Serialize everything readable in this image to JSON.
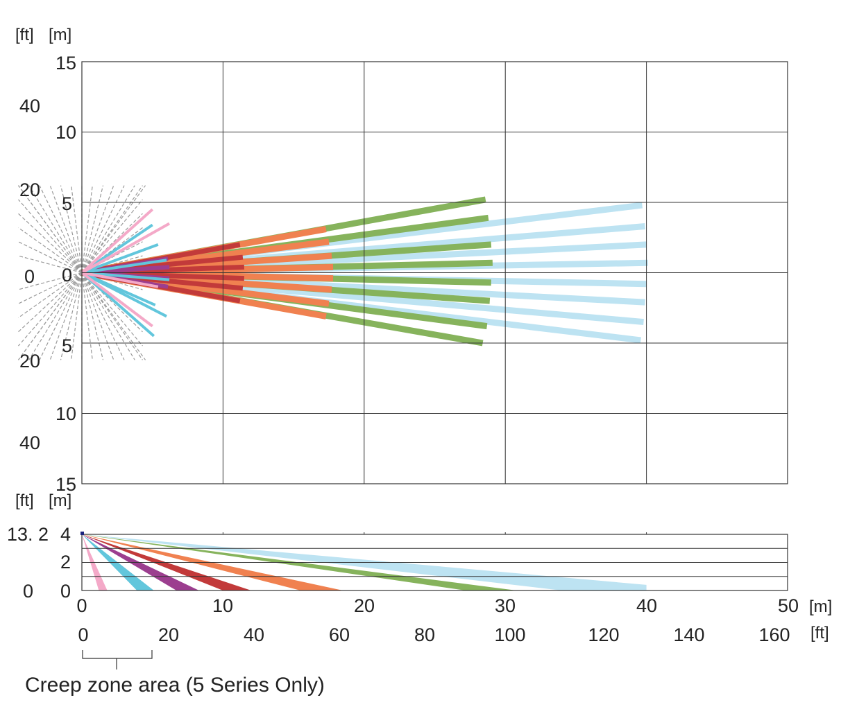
{
  "top_view": {
    "unit_ft": "[ft]",
    "unit_m": "[m]",
    "y_m_labels": [
      "15",
      "10",
      "5",
      "0",
      "5",
      "10",
      "15"
    ],
    "y_ft_labels": [
      "40",
      "20",
      "0",
      "20",
      "40"
    ]
  },
  "side_view": {
    "unit_ft": "[ft]",
    "unit_m": "[m]",
    "y_m_labels": [
      "4",
      "2",
      "0"
    ],
    "y_ft_labels": [
      "13. 2",
      "0"
    ]
  },
  "x_axis": {
    "m_labels": [
      "0",
      "10",
      "20",
      "30",
      "40",
      "50"
    ],
    "m_unit": "[m]",
    "ft_labels": [
      "0",
      "20",
      "40",
      "60",
      "80",
      "100",
      "120",
      "140",
      "160"
    ],
    "ft_unit": "[ft]"
  },
  "caption": "Creep zone area (5 Series Only)",
  "colors": {
    "grid": "#333333",
    "creep_gray": "#9a9a9a",
    "pink": "#f4a9c8",
    "cyan": "#62c6dc",
    "purple": "#9c3e8f",
    "red": "#c23a3a",
    "orange": "#f08150",
    "green": "#86b35c",
    "light_blue": "#bde3f2"
  },
  "chart_data": [
    {
      "type": "scatter",
      "title": "",
      "view": "top",
      "xlabel": "[m]",
      "ylabel": "[m]",
      "xlim": [
        0,
        50
      ],
      "ylim": [
        -15,
        15
      ],
      "grid": true,
      "beam_endpoints_m": {
        "light_blue": [
          [
            39.7,
            4.8
          ],
          [
            39.9,
            3.3
          ],
          [
            40.0,
            2.0
          ],
          [
            40.1,
            0.7
          ],
          [
            40.0,
            -0.8
          ],
          [
            39.9,
            -2.1
          ],
          [
            39.8,
            -3.5
          ],
          [
            39.6,
            -4.8
          ]
        ],
        "green": [
          [
            28.6,
            5.2
          ],
          [
            28.8,
            3.9
          ],
          [
            29.0,
            2.0
          ],
          [
            29.1,
            0.7
          ],
          [
            29.0,
            -0.7
          ],
          [
            28.9,
            -2.0
          ],
          [
            28.7,
            -3.8
          ],
          [
            28.4,
            -5.0
          ]
        ],
        "orange": [
          [
            17.3,
            3.1
          ],
          [
            17.5,
            2.2
          ],
          [
            17.7,
            1.2
          ],
          [
            17.8,
            0.4
          ],
          [
            17.8,
            -0.4
          ],
          [
            17.7,
            -1.2
          ],
          [
            17.5,
            -2.2
          ],
          [
            17.3,
            -3.1
          ]
        ],
        "red": [
          [
            11.2,
            2.0
          ],
          [
            11.4,
            1.1
          ],
          [
            11.5,
            0.4
          ],
          [
            11.5,
            -0.4
          ],
          [
            11.4,
            -1.1
          ],
          [
            11.2,
            -2.0
          ]
        ],
        "purple": [
          [
            6.1,
            1.0
          ],
          [
            6.2,
            0.4
          ],
          [
            6.2,
            -0.4
          ],
          [
            6.1,
            -1.0
          ]
        ],
        "cyan": [
          [
            5.0,
            3.4
          ],
          [
            5.4,
            2.0
          ],
          [
            6.0,
            0.9
          ],
          [
            6.2,
            -0.5
          ],
          [
            5.2,
            -2.3
          ],
          [
            6.0,
            -3.1
          ],
          [
            5.1,
            -4.5
          ]
        ],
        "pink": [
          [
            5.0,
            4.5
          ],
          [
            6.2,
            3.5
          ],
          [
            5.4,
            -1.0
          ],
          [
            5.0,
            -3.8
          ]
        ]
      }
    },
    {
      "type": "scatter",
      "title": "",
      "view": "side",
      "xlabel": "[m]",
      "ylabel": "[m]",
      "xlim": [
        0,
        50
      ],
      "ylim": [
        0,
        4
      ],
      "grid": true,
      "mount_height_m": 4,
      "beam_floor_reach_m": {
        "pink": 1.5,
        "cyan": 4.5,
        "purple": 7.5,
        "red": 11.0,
        "orange": 17.0,
        "green": 29.0,
        "light_blue": 40.0
      }
    }
  ]
}
